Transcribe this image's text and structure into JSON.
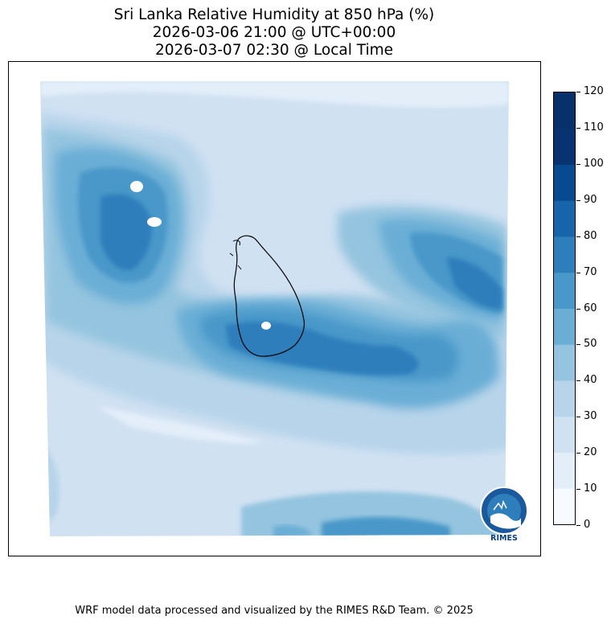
{
  "title": {
    "line1": "Sri Lanka Relative Humidity at 850 hPa (%)",
    "line2": "2026-03-06 21:00 @ UTC+00:00",
    "line3": "2026-03-07 02:30 @ Local Time"
  },
  "colorbar": {
    "ticks": [
      "0",
      "10",
      "20",
      "30",
      "40",
      "50",
      "60",
      "70",
      "80",
      "90",
      "100",
      "110",
      "120"
    ],
    "colors": [
      "#f7fbff",
      "#e3eef9",
      "#d0e1f2",
      "#b7d4ea",
      "#94c4df",
      "#6aaed6",
      "#4a98c9",
      "#2e7ebc",
      "#1764ab",
      "#084a91",
      "#083370",
      "#08306b"
    ]
  },
  "logo": {
    "label": "RIMES"
  },
  "footer": "WRF model data processed and visualized by the RIMES R&D Team. © 2025"
}
